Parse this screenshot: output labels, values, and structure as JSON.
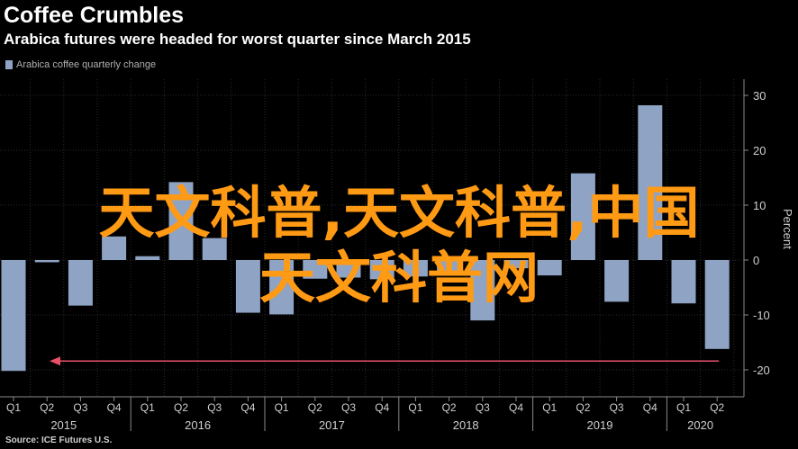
{
  "title": "Coffee Crumbles",
  "subtitle": "Arabica futures were headed for worst quarter since March 2015",
  "source": "Source: ICE Futures U.S.",
  "overlay": {
    "line1": "天文科普,天文科普,中国",
    "line2": "天文科普网"
  },
  "colors": {
    "bar": "#8fa3c4",
    "arrow": "#e8506a",
    "grid": "#2a2a2a",
    "axis": "#8a8a8a",
    "overlay": "#ff9a14"
  },
  "chart_data": {
    "type": "bar",
    "legend": [
      "Arabica coffee quarterly change"
    ],
    "y_axis_label": "Percent",
    "y_axis_side": "right",
    "ylim": [
      -25,
      32
    ],
    "yticks": [
      30,
      20,
      10,
      0,
      -10,
      -20
    ],
    "grid": true,
    "categories": [
      "Q1",
      "Q2",
      "Q3",
      "Q4",
      "Q1",
      "Q2",
      "Q3",
      "Q4",
      "Q1",
      "Q2",
      "Q3",
      "Q4",
      "Q1",
      "Q2",
      "Q3",
      "Q4",
      "Q1",
      "Q2",
      "Q3",
      "Q4",
      "Q1",
      "Q2"
    ],
    "years": [
      {
        "label": "2015",
        "start": 0,
        "end": 3
      },
      {
        "label": "2016",
        "start": 4,
        "end": 7
      },
      {
        "label": "2017",
        "start": 8,
        "end": 11
      },
      {
        "label": "2018",
        "start": 12,
        "end": 15
      },
      {
        "label": "2019",
        "start": 16,
        "end": 19
      },
      {
        "label": "2020",
        "start": 20,
        "end": 21
      }
    ],
    "series": [
      {
        "values": [
          -20.2,
          -0.4,
          -8.3,
          4.3,
          0.7,
          14.2,
          4.0,
          -9.6,
          -9.9,
          -3.4,
          -3.2,
          -3.5,
          -3.0,
          -2.5,
          -11.0,
          -1.5,
          -2.8,
          15.8,
          -7.6,
          28.2,
          -7.9,
          -16.2
        ]
      }
    ],
    "annotations": [
      {
        "type": "arrow",
        "direction": "left",
        "from_index": 21,
        "to_index": 0,
        "y": -18.4
      }
    ]
  }
}
